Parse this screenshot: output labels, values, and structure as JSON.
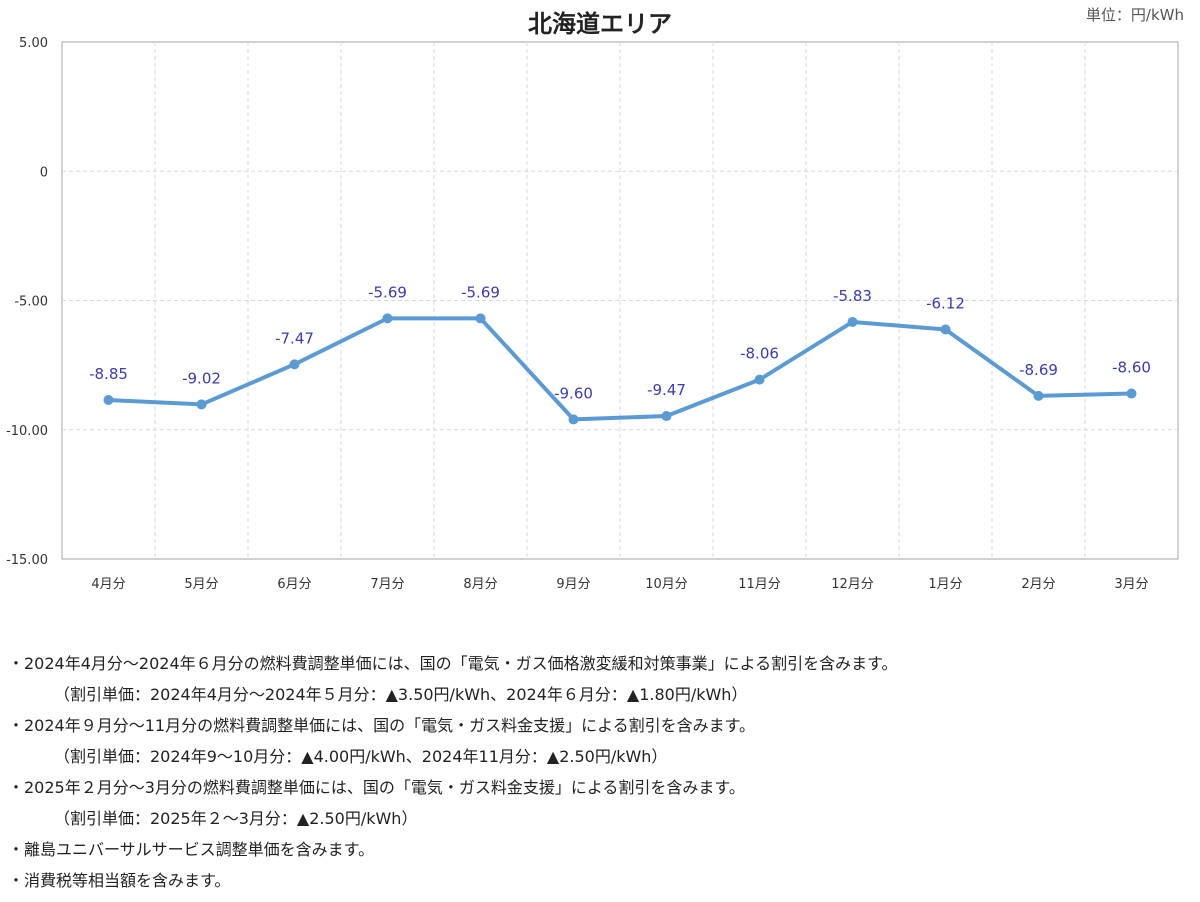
{
  "chart_data": {
    "type": "line",
    "title": "北海道エリア",
    "unit": "単位：円/kWh",
    "categories": [
      "4月分",
      "5月分",
      "6月分",
      "7月分",
      "8月分",
      "9月分",
      "10月分",
      "11月分",
      "12月分",
      "1月分",
      "2月分",
      "3月分"
    ],
    "values": [
      -8.85,
      -9.02,
      -7.47,
      -5.69,
      -5.69,
      -9.6,
      -9.47,
      -8.06,
      -5.83,
      -6.12,
      -8.69,
      -8.6
    ],
    "value_labels": [
      "-8.85",
      "-9.02",
      "-7.47",
      "-5.69",
      "-5.69",
      "-9.60",
      "-9.47",
      "-8.06",
      "-5.83",
      "-6.12",
      "-8.69",
      "-8.60"
    ],
    "y_ticks": [
      5,
      0,
      -5,
      -10,
      -15
    ],
    "y_tick_labels": [
      "5.00",
      "0",
      "-5.00",
      "-10.00",
      "-15.00"
    ],
    "ylim": [
      -15,
      5
    ],
    "grid": true,
    "colors": {
      "line": "#5b9bd5",
      "label": "#3b3bb3",
      "grid": "#d9d9d9",
      "axis": "#a6a6a6"
    }
  },
  "notes": [
    {
      "text": "・2024年4月分～2024年６月分の燃料費調整単価には、国の「電気・ガス価格激変緩和対策事業」による割引を含みます。",
      "sub": false
    },
    {
      "text": "（割引単価：2024年4月分～2024年５月分：▲3.50円/kWh、2024年６月分：▲1.80円/kWh）",
      "sub": true
    },
    {
      "text": "・2024年９月分～11月分の燃料費調整単価には、国の「電気・ガス料金支援」による割引を含みます。",
      "sub": false
    },
    {
      "text": "（割引単価：2024年9～10月分：▲4.00円/kWh、2024年11月分：▲2.50円/kWh）",
      "sub": true
    },
    {
      "text": "・2025年２月分～3月分の燃料費調整単価には、国の「電気・ガス料金支援」による割引を含みます。",
      "sub": false
    },
    {
      "text": "（割引単価：2025年２～3月分：▲2.50円/kWh）",
      "sub": true
    },
    {
      "text": "・離島ユニバーサルサービス調整単価を含みます。",
      "sub": false
    },
    {
      "text": "・消費税等相当額を含みます。",
      "sub": false
    }
  ]
}
